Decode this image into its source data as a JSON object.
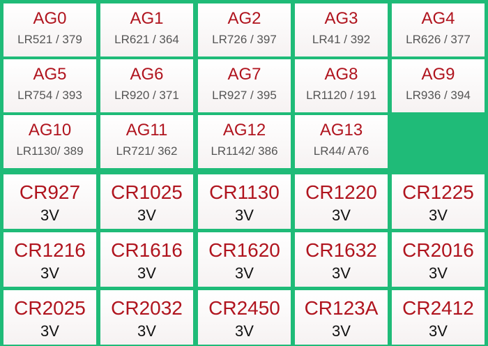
{
  "ag_cells": [
    {
      "title": "AG0",
      "subtitle": "LR521 / 379"
    },
    {
      "title": "AG1",
      "subtitle": "LR621 / 364"
    },
    {
      "title": "AG2",
      "subtitle": "LR726 / 397"
    },
    {
      "title": "AG3",
      "subtitle": "LR41 / 392"
    },
    {
      "title": "AG4",
      "subtitle": "LR626 / 377"
    },
    {
      "title": "AG5",
      "subtitle": "LR754 / 393"
    },
    {
      "title": "AG6",
      "subtitle": "LR920 / 371"
    },
    {
      "title": "AG7",
      "subtitle": "LR927 / 395"
    },
    {
      "title": "AG8",
      "subtitle": "LR1120 / 191"
    },
    {
      "title": "AG9",
      "subtitle": "LR936 / 394"
    },
    {
      "title": "AG10",
      "subtitle": "LR1130/ 389"
    },
    {
      "title": "AG11",
      "subtitle": "LR721/ 362"
    },
    {
      "title": "AG12",
      "subtitle": "LR1142/ 386"
    },
    {
      "title": "AG13",
      "subtitle": "LR44/ A76"
    }
  ],
  "cr_cells": [
    {
      "title": "CR927",
      "subtitle": "3V"
    },
    {
      "title": "CR1025",
      "subtitle": "3V"
    },
    {
      "title": "CR1130",
      "subtitle": "3V"
    },
    {
      "title": "CR1220",
      "subtitle": "3V"
    },
    {
      "title": "CR1225",
      "subtitle": "3V"
    },
    {
      "title": "CR1216",
      "subtitle": "3V"
    },
    {
      "title": "CR1616",
      "subtitle": "3V"
    },
    {
      "title": "CR1620",
      "subtitle": "3V"
    },
    {
      "title": "CR1632",
      "subtitle": "3V"
    },
    {
      "title": "CR2016",
      "subtitle": "3V"
    },
    {
      "title": "CR2025",
      "subtitle": "3V"
    },
    {
      "title": "CR2032",
      "subtitle": "3V"
    },
    {
      "title": "CR2450",
      "subtitle": "3V"
    },
    {
      "title": "CR123A",
      "subtitle": "3V"
    },
    {
      "title": "CR2412",
      "subtitle": "3V"
    }
  ]
}
